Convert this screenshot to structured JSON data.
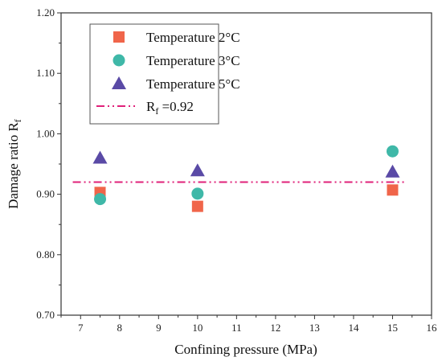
{
  "chart_data": {
    "type": "scatter",
    "xlabel": "Confining pressure (MPa)",
    "ylabel": {
      "main": "Damage ratio R",
      "sub": "f"
    },
    "xlim": [
      6.5,
      16
    ],
    "ylim": [
      0.7,
      1.2
    ],
    "xticks": [
      "7",
      "8",
      "9",
      "10",
      "11",
      "12",
      "13",
      "14",
      "15",
      "16"
    ],
    "yticks": [
      "0.70",
      "0.80",
      "0.90",
      "1.00",
      "1.10",
      "1.20"
    ],
    "grid": false,
    "legend_position": "top-left",
    "series": [
      {
        "name": "Temperature 2°C",
        "marker": "square",
        "color": "#f0654a",
        "x": [
          7.5,
          10,
          15
        ],
        "y": [
          0.903,
          0.88,
          0.907
        ]
      },
      {
        "name": "Temperature 3°C",
        "marker": "circle",
        "color": "#3fb8a8",
        "x": [
          7.5,
          10,
          15
        ],
        "y": [
          0.892,
          0.901,
          0.971
        ]
      },
      {
        "name": "Temperature 5°C",
        "marker": "triangle",
        "color": "#5a4aa6",
        "x": [
          7.5,
          10,
          15
        ],
        "y": [
          0.96,
          0.939,
          0.937
        ]
      }
    ],
    "reference_line": {
      "label_main": "R",
      "label_sub": "f",
      "label_rest": " =0.92",
      "y": 0.92,
      "x_range": [
        6.8,
        15.3
      ],
      "color": "#e0217a",
      "style": "dash-dot-dot"
    }
  }
}
